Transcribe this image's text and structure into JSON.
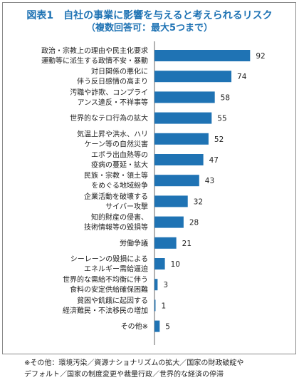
{
  "title": "図表1　自社の事業に影響を与えると考えられるリスク",
  "subtitle": "（複数回答可：最大5つまで）",
  "colors": {
    "bar": "#1f73b4",
    "title": "#1f73b4"
  },
  "chart_data": {
    "type": "bar",
    "orientation": "horizontal",
    "categories": [
      [
        "政治・宗教上の理由や民主化要求",
        "運動等に派生する政情不安・暴動"
      ],
      [
        "対日関係の悪化に",
        "伴う反日感情の高まり"
      ],
      [
        "汚職や詐欺、コンプライ",
        "アンス違反・不祥事等"
      ],
      [
        "世界的なテロ行為の拡大"
      ],
      [
        "気温上昇や洪水、ハリ",
        "ケーン等の自然災害"
      ],
      [
        "エボラ出血熱等の",
        "疫病の蔓延・拡大"
      ],
      [
        "民族・宗教・領土等",
        "をめぐる地域紛争"
      ],
      [
        "企業活動を破壊する",
        "サイバー攻撃"
      ],
      [
        "知的財産の侵害、",
        "技術情報等の毀損等"
      ],
      [
        "労働争議"
      ],
      [
        "シーレーンの毀損による",
        "エネルギー需給逼迫"
      ],
      [
        "世界的な需給不均衡に伴う",
        "食料の安定供給確保困難"
      ],
      [
        "貧困や飢餓に起因する",
        "経済難民・不法移民の増加"
      ],
      [
        "その他※"
      ]
    ],
    "values": [
      92,
      74,
      58,
      55,
      52,
      47,
      43,
      32,
      28,
      21,
      10,
      3,
      1,
      5
    ],
    "xlim": [
      0,
      100
    ],
    "grid": false,
    "legend": "none"
  },
  "notes": [
    "※その他：環境汚染／資源ナショナリズムの拡大／国家の財政破綻や",
    "デフォルト／国家の制度変更や裁量行政／世界的な経済の停滞"
  ]
}
